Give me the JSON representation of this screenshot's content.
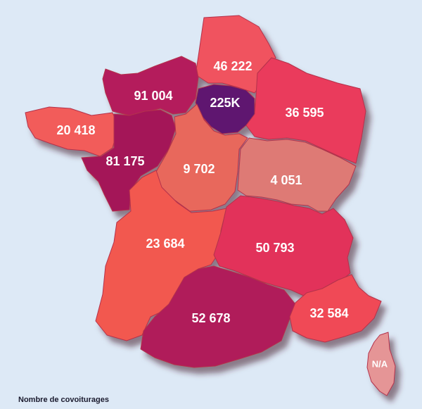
{
  "legend_title": "Nombre de covoiturages",
  "regions": [
    {
      "id": "hauts-de-france",
      "value": "46 222",
      "color": "#f0525e"
    },
    {
      "id": "normandie",
      "value": "91 004",
      "color": "#b41d5c"
    },
    {
      "id": "ile-de-france",
      "value": "225K",
      "color": "#5e1470"
    },
    {
      "id": "grand-est",
      "value": "36 595",
      "color": "#ea3a5c"
    },
    {
      "id": "bretagne",
      "value": "20 418",
      "color": "#f25b5a"
    },
    {
      "id": "pays-de-la-loire",
      "value": "81 175",
      "color": "#a41659"
    },
    {
      "id": "centre-val-de-loire",
      "value": "9 702",
      "color": "#e8685c"
    },
    {
      "id": "bourgogne-franche-comte",
      "value": "4 051",
      "color": "#de7a75"
    },
    {
      "id": "nouvelle-aquitaine",
      "value": "23 684",
      "color": "#f25850"
    },
    {
      "id": "auvergne-rhone-alpes",
      "value": "50 793",
      "color": "#e2305a"
    },
    {
      "id": "occitanie",
      "value": "52 678",
      "color": "#b01d5a"
    },
    {
      "id": "provence-alpes-cote-d-azur",
      "value": "32 584",
      "color": "#f04a56"
    },
    {
      "id": "corse",
      "value": "N/A",
      "color": "#e59596"
    }
  ]
}
